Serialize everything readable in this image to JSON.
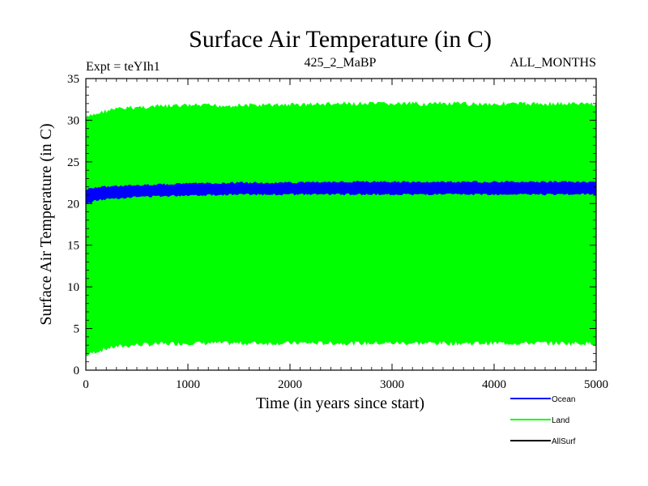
{
  "chart_data": {
    "type": "area",
    "title": "Surface Air Temperature (in C)",
    "subtitle_left": "Expt = teYIh1",
    "subtitle_center": "425_2_MaBP",
    "subtitle_right": "ALL_MONTHS",
    "xlabel": "Time (in years since start)",
    "ylabel": "Surface Air Temperature (in C)",
    "xlim": [
      0,
      5000
    ],
    "ylim": [
      0,
      35
    ],
    "x_ticks": [
      0,
      1000,
      2000,
      3000,
      4000,
      5000
    ],
    "y_ticks": [
      0,
      5,
      10,
      15,
      20,
      25,
      30,
      35
    ],
    "x_tick_labels": [
      "0",
      "1000",
      "2000",
      "3000",
      "4000",
      "5000"
    ],
    "y_tick_labels": [
      "0",
      "5",
      "10",
      "15",
      "20",
      "25",
      "30",
      "35"
    ],
    "grid": false,
    "legend_position": "bottom-right",
    "series": [
      {
        "name": "Land",
        "color": "#00ff00",
        "x": [
          0,
          100,
          250,
          500,
          1000,
          1500,
          2000,
          2500,
          3000,
          3500,
          4000,
          4500,
          5000
        ],
        "low": [
          1.5,
          2.0,
          2.5,
          2.8,
          3.0,
          3.0,
          3.0,
          3.0,
          3.0,
          3.0,
          3.0,
          3.0,
          3.0
        ],
        "high": [
          30.5,
          31.0,
          31.5,
          31.8,
          32.0,
          32.0,
          32.1,
          32.2,
          32.2,
          32.2,
          32.2,
          32.2,
          32.2
        ]
      },
      {
        "name": "Ocean",
        "color": "#0000ff",
        "x": [
          0,
          100,
          250,
          500,
          1000,
          1500,
          2000,
          2500,
          3000,
          3500,
          4000,
          4500,
          5000
        ],
        "low": [
          19.8,
          20.3,
          20.5,
          20.7,
          20.9,
          21.0,
          21.0,
          21.0,
          21.0,
          21.0,
          21.0,
          21.0,
          21.0
        ],
        "high": [
          21.8,
          22.0,
          22.2,
          22.3,
          22.5,
          22.6,
          22.6,
          22.7,
          22.7,
          22.7,
          22.7,
          22.7,
          22.7
        ]
      },
      {
        "name": "AllSurf",
        "color": "#000000",
        "x": [],
        "low": [],
        "high": []
      }
    ]
  }
}
